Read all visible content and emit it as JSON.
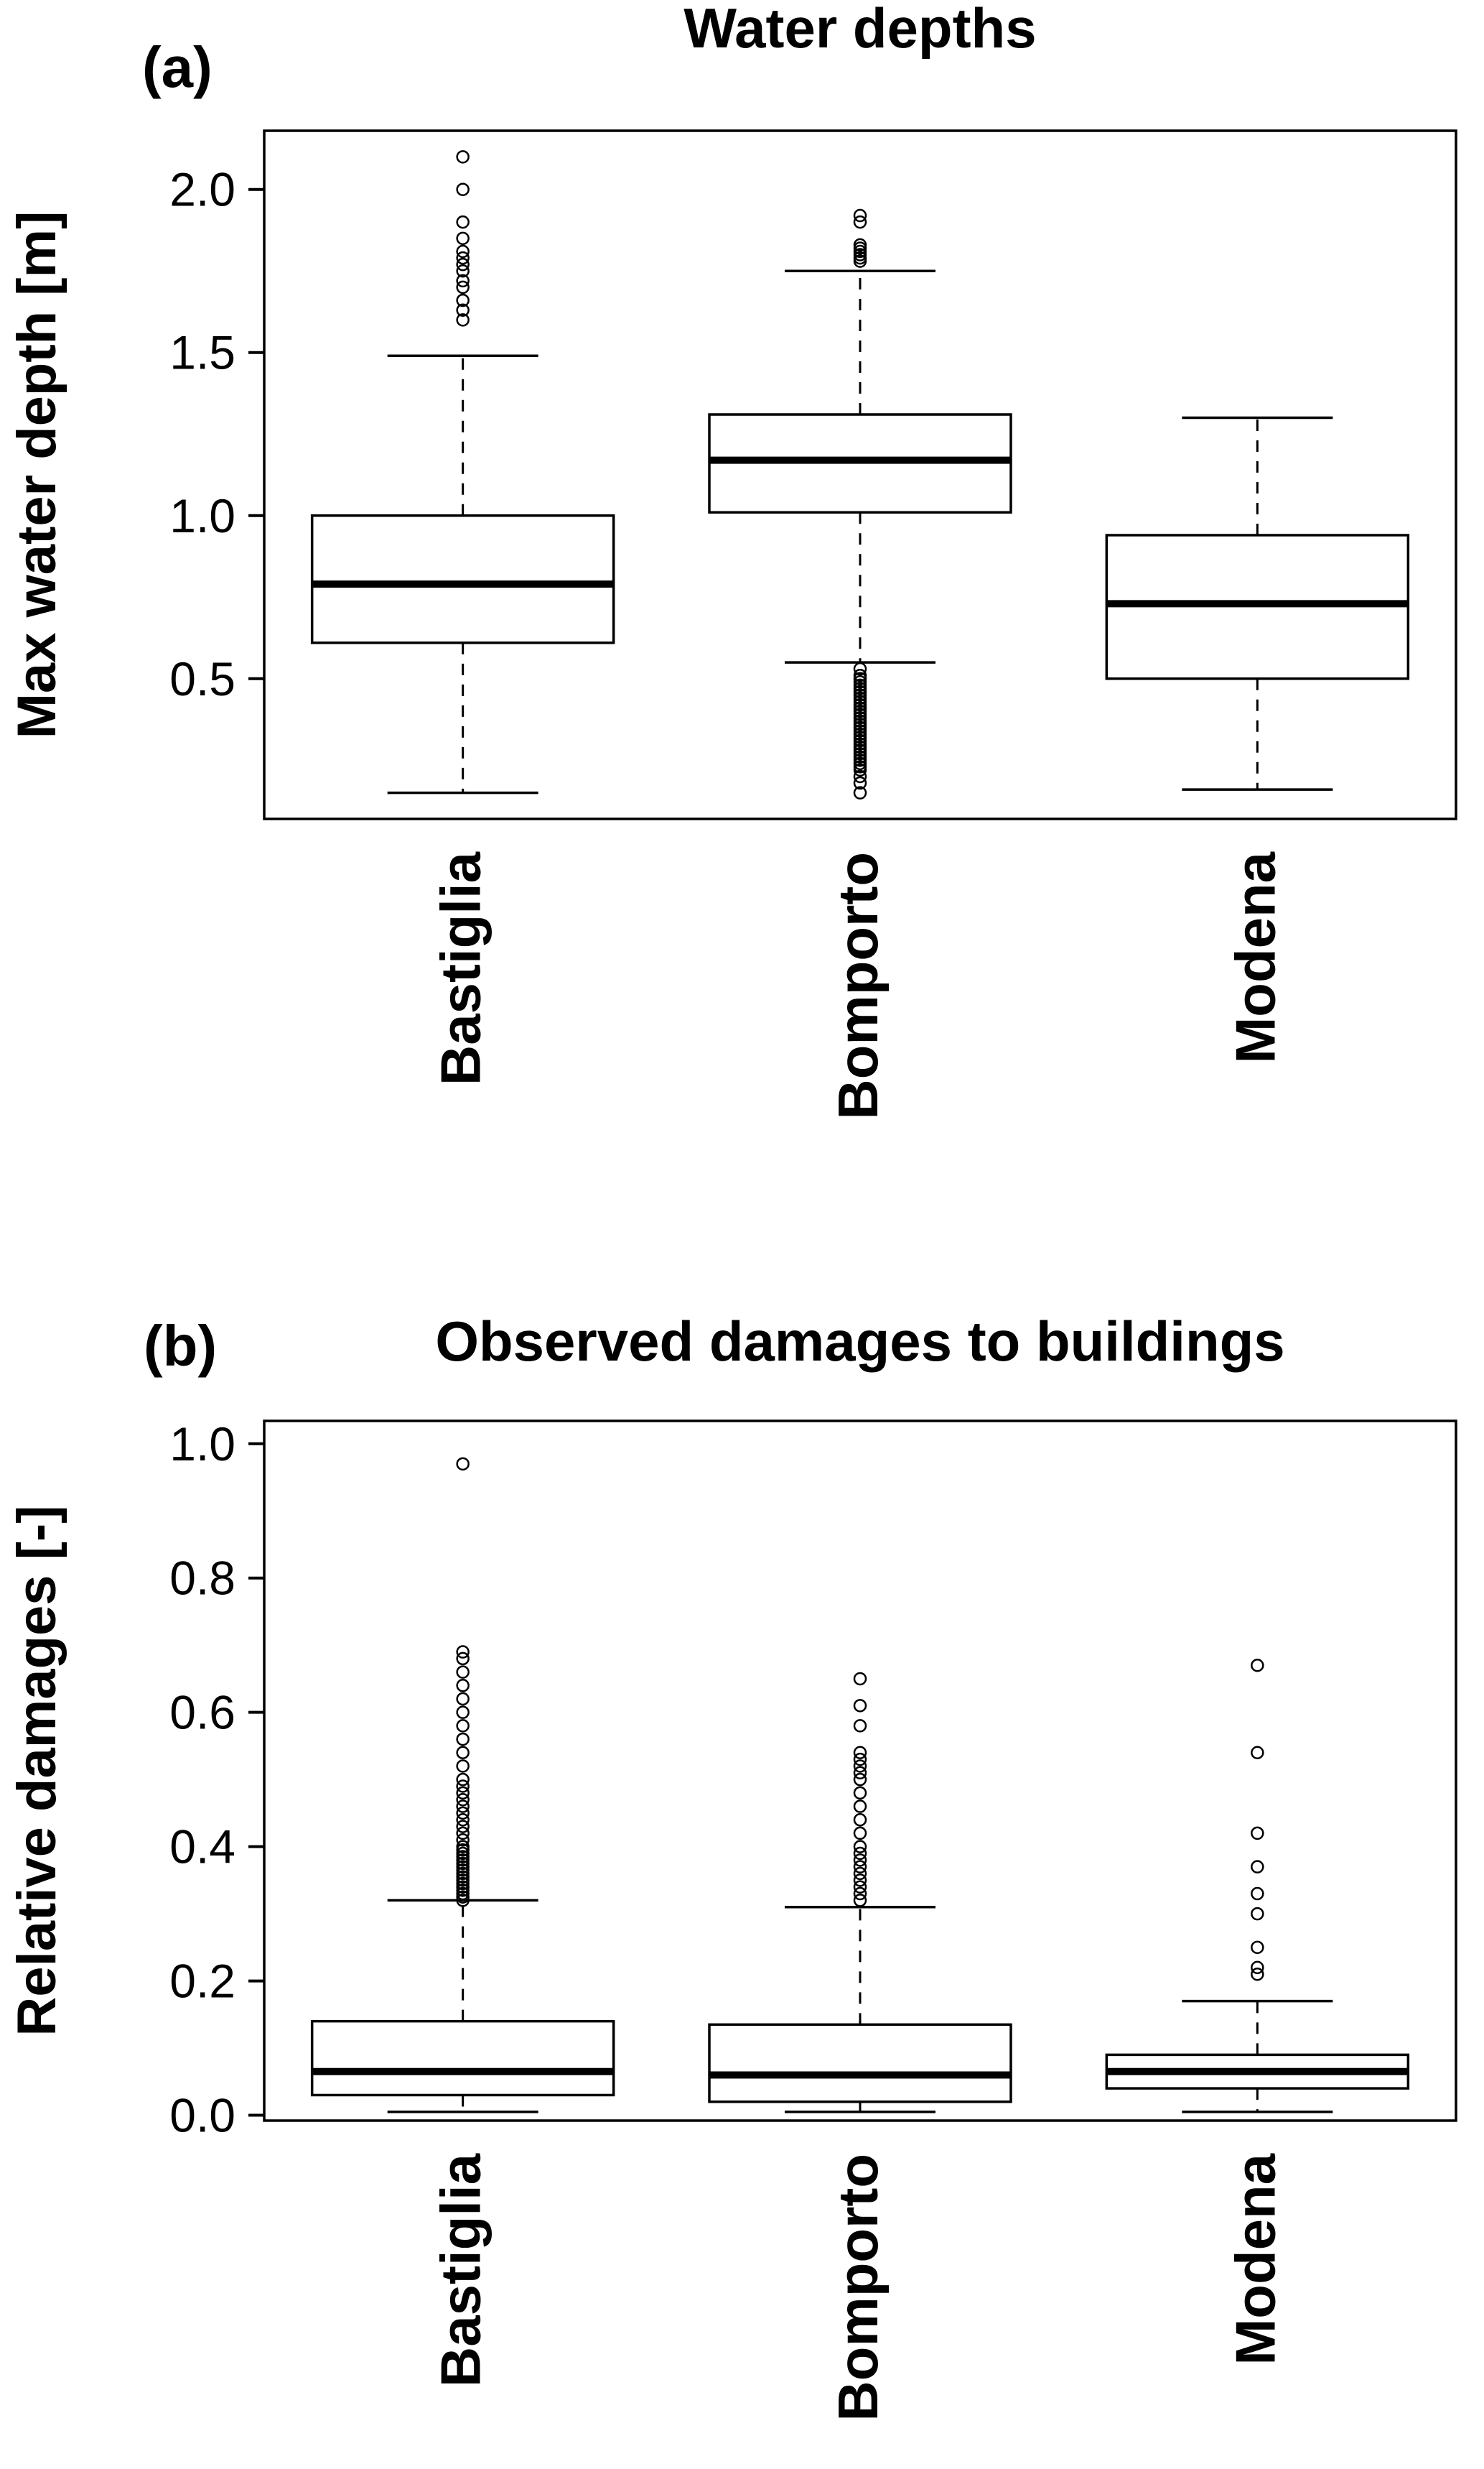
{
  "chart_data": [
    {
      "id": "water-depths",
      "type": "boxplot",
      "panel_label": "(a)",
      "title": "Water depths",
      "ylabel": "Max water depth [m]",
      "categories": [
        "Bastiglia",
        "Bomporto",
        "Modena"
      ],
      "ylim": [
        0.07,
        2.18
      ],
      "yticks": [
        0.5,
        1.0,
        1.5,
        2.0
      ],
      "ytick_labels": [
        "0.5",
        "1.0",
        "1.5",
        "2.0"
      ],
      "grid": false,
      "boxes": [
        {
          "category": "Bastiglia",
          "whisker_low": 0.15,
          "q1": 0.61,
          "median": 0.79,
          "q3": 1.0,
          "whisker_high": 1.49,
          "outliers": [
            1.6,
            1.63,
            1.66,
            1.7,
            1.72,
            1.75,
            1.77,
            1.79,
            1.81,
            1.85,
            1.9,
            2.0,
            2.1
          ]
        },
        {
          "category": "Bomporto",
          "whisker_low": 0.55,
          "q1": 1.01,
          "median": 1.17,
          "q3": 1.31,
          "whisker_high": 1.75,
          "outliers": [
            1.78,
            1.79,
            1.8,
            1.81,
            1.82,
            1.83,
            1.9,
            1.92,
            0.53,
            0.51,
            0.5,
            0.49,
            0.48,
            0.47,
            0.46,
            0.45,
            0.44,
            0.43,
            0.42,
            0.41,
            0.4,
            0.39,
            0.38,
            0.37,
            0.36,
            0.35,
            0.34,
            0.33,
            0.32,
            0.31,
            0.3,
            0.29,
            0.28,
            0.27,
            0.26,
            0.25,
            0.24,
            0.23,
            0.22,
            0.2,
            0.18,
            0.15
          ]
        },
        {
          "category": "Modena",
          "whisker_low": 0.16,
          "q1": 0.5,
          "median": 0.73,
          "q3": 0.94,
          "whisker_high": 1.3,
          "outliers": []
        }
      ]
    },
    {
      "id": "observed-damages",
      "type": "boxplot",
      "panel_label": "(b)",
      "title": "Observed damages to buildings",
      "ylabel": "Relative damages [-]",
      "categories": [
        "Bastiglia",
        "Bomporto",
        "Modena"
      ],
      "ylim": [
        -0.008,
        1.034
      ],
      "yticks": [
        0.0,
        0.2,
        0.4,
        0.6,
        0.8,
        1.0
      ],
      "ytick_labels": [
        "0.0",
        "0.2",
        "0.4",
        "0.6",
        "0.8",
        "1.0"
      ],
      "grid": false,
      "boxes": [
        {
          "category": "Bastiglia",
          "whisker_low": 0.005,
          "q1": 0.03,
          "median": 0.065,
          "q3": 0.14,
          "whisker_high": 0.32,
          "outliers": [
            0.32,
            0.325,
            0.33,
            0.335,
            0.34,
            0.345,
            0.35,
            0.355,
            0.36,
            0.365,
            0.37,
            0.375,
            0.38,
            0.385,
            0.39,
            0.395,
            0.4,
            0.41,
            0.42,
            0.43,
            0.44,
            0.45,
            0.46,
            0.47,
            0.48,
            0.49,
            0.5,
            0.52,
            0.54,
            0.56,
            0.58,
            0.6,
            0.62,
            0.64,
            0.66,
            0.68,
            0.69,
            0.97
          ]
        },
        {
          "category": "Bomporto",
          "whisker_low": 0.005,
          "q1": 0.02,
          "median": 0.06,
          "q3": 0.135,
          "whisker_high": 0.31,
          "outliers": [
            0.32,
            0.33,
            0.34,
            0.35,
            0.36,
            0.37,
            0.38,
            0.39,
            0.4,
            0.42,
            0.44,
            0.46,
            0.48,
            0.5,
            0.51,
            0.52,
            0.53,
            0.54,
            0.58,
            0.61,
            0.65
          ]
        },
        {
          "category": "Modena",
          "whisker_low": 0.005,
          "q1": 0.04,
          "median": 0.065,
          "q3": 0.09,
          "whisker_high": 0.17,
          "outliers": [
            0.21,
            0.22,
            0.25,
            0.3,
            0.33,
            0.37,
            0.42,
            0.54,
            0.67
          ]
        }
      ]
    }
  ]
}
